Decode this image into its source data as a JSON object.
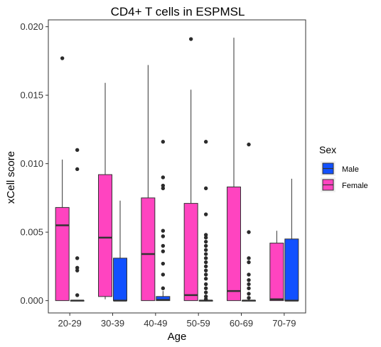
{
  "chart_data": {
    "type": "boxplot",
    "title": "CD4+ T cells in ESPMSL",
    "xlabel": "Age",
    "ylabel": "xCell score",
    "categories": [
      "20-29",
      "30-39",
      "40-49",
      "50-59",
      "60-69",
      "70-79"
    ],
    "ylim": [
      -0.0009,
      0.0205
    ],
    "yticks": [
      0.0,
      0.005,
      0.01,
      0.015,
      0.02
    ],
    "ytick_labels": [
      "0.000",
      "0.005",
      "0.010",
      "0.015",
      "0.020"
    ],
    "grid": false,
    "legend": {
      "title": "Sex",
      "position": "right"
    },
    "series": [
      {
        "name": "Male",
        "color": "#1150ff",
        "boxes": [
          {
            "category": "20-29",
            "min": 0,
            "q1": 0,
            "median": 0,
            "q3": 0,
            "max": 0,
            "outliers": [
              0.011,
              0.0096,
              0.0031,
              0.0024,
              0.0022,
              0.0004
            ]
          },
          {
            "category": "30-39",
            "min": 0,
            "q1": 0,
            "median": 0,
            "q3": 0.0031,
            "max": 0.0073,
            "outliers": []
          },
          {
            "category": "40-49",
            "min": 0,
            "q1": 0,
            "median": 5e-05,
            "q3": 0.0003,
            "max": 0.0007,
            "outliers": [
              0.0116,
              0.009,
              0.0084,
              0.0082,
              0.0051,
              0.0047,
              0.004,
              0.0036,
              0.0027,
              0.0019,
              0.0009
            ]
          },
          {
            "category": "50-59",
            "min": 0,
            "q1": 0,
            "median": 0,
            "q3": 0,
            "max": 0,
            "outliers": [
              0.0116,
              0.0082,
              0.0063,
              0.0048,
              0.0046,
              0.0043,
              0.004,
              0.0037,
              0.0034,
              0.0031,
              0.0028,
              0.0025,
              0.0022,
              0.0019,
              0.0016,
              0.0012,
              0.0009,
              0.0006,
              0.0003,
              0.0001
            ]
          },
          {
            "category": "60-69",
            "min": 0,
            "q1": 0,
            "median": 0,
            "q3": 0,
            "max": 0,
            "outliers": [
              0.0114,
              0.005,
              0.0031,
              0.0028,
              0.0019,
              0.0015,
              0.0012,
              0.0009,
              0.0005,
              0.0002
            ]
          },
          {
            "category": "70-79",
            "min": 0,
            "q1": 0,
            "median": 0,
            "q3": 0.0045,
            "max": 0.0089,
            "outliers": []
          }
        ]
      },
      {
        "name": "Female",
        "color": "#ff44c0",
        "boxes": [
          {
            "category": "20-29",
            "min": 0,
            "q1": 0,
            "median": 0.0055,
            "q3": 0.0068,
            "max": 0.0103,
            "outliers": [
              0.0177
            ]
          },
          {
            "category": "30-39",
            "min": 0.0001,
            "q1": 0.0003,
            "median": 0.0046,
            "q3": 0.0092,
            "max": 0.0159,
            "outliers": []
          },
          {
            "category": "40-49",
            "min": 0,
            "q1": 0,
            "median": 0.0034,
            "q3": 0.0075,
            "max": 0.0172,
            "outliers": []
          },
          {
            "category": "50-59",
            "min": 0,
            "q1": 0,
            "median": 0.0004,
            "q3": 0.0071,
            "max": 0.0154,
            "outliers": [
              0.0191
            ]
          },
          {
            "category": "60-69",
            "min": 0,
            "q1": 0,
            "median": 0.0007,
            "q3": 0.0083,
            "max": 0.0192,
            "outliers": []
          },
          {
            "category": "70-79",
            "min": 0,
            "q1": 0,
            "median": 0.0001,
            "q3": 0.0042,
            "max": 0.0051,
            "outliers": []
          }
        ]
      }
    ]
  }
}
